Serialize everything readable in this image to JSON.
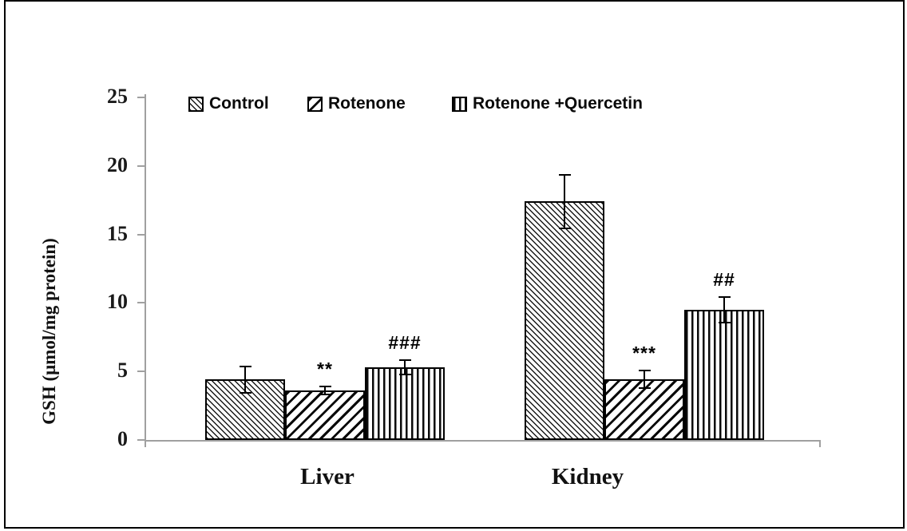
{
  "chart_data": {
    "type": "bar",
    "title": "",
    "ylabel": "GSH (μmol/mg protein)",
    "xlabel": "",
    "ylim": [
      0,
      25
    ],
    "yticks": [
      0,
      5,
      10,
      15,
      20,
      25
    ],
    "grid": false,
    "legend_position": "top",
    "categories": [
      "Liver",
      "Kidney"
    ],
    "series": [
      {
        "name": "Control",
        "pattern": "back",
        "values": [
          4.4,
          17.4
        ],
        "errors": [
          1.0,
          2.0
        ],
        "sig": [
          "",
          ""
        ]
      },
      {
        "name": "Rotenone",
        "pattern": "forward",
        "values": [
          3.6,
          4.4
        ],
        "errors": [
          0.35,
          0.7
        ],
        "sig": [
          "**",
          "***"
        ]
      },
      {
        "name": "Rotenone +Quercetin",
        "pattern": "vertical",
        "values": [
          5.3,
          9.5
        ],
        "errors": [
          0.6,
          1.0
        ],
        "sig": [
          "###",
          "##"
        ]
      }
    ],
    "colors": {
      "foreground": "#000000",
      "axis": "#a0a0a0",
      "background": "#ffffff"
    }
  }
}
